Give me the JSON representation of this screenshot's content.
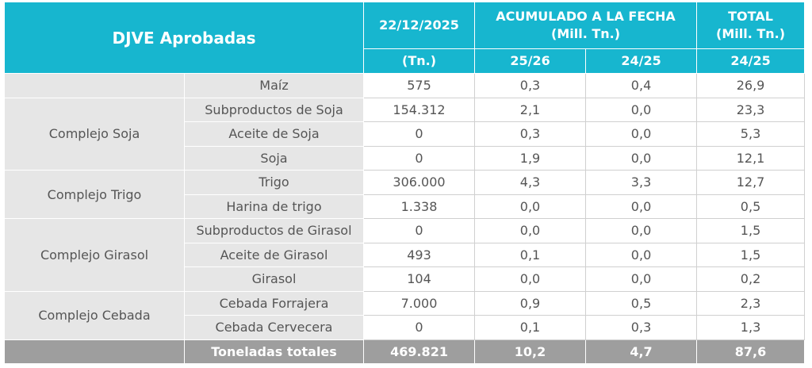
{
  "header": {
    "title": "DJVE Aprobadas",
    "date": "22/12/2025",
    "date_unit": "(Tn.)",
    "acumulado": [
      "ACUMULADO A LA FECHA",
      "(Mill. Tn.)"
    ],
    "total": [
      "TOTAL",
      "(Mill. Tn.)"
    ],
    "columns": [
      "25/26",
      "24/25",
      "24/25"
    ]
  },
  "sections": [
    {
      "products": [
        {
          "name": "Maíz",
          "values": [
            "575",
            "0,3",
            "0,4",
            "26,9"
          ]
        }
      ]
    },
    {
      "name": "Complejo Soja",
      "products": [
        {
          "name": "Subproductos de Soja",
          "values": [
            "154.312",
            "2,1",
            "0,0",
            "23,3"
          ]
        },
        {
          "name": "Aceite de Soja",
          "values": [
            "0",
            "0,3",
            "0,0",
            "5,3"
          ]
        },
        {
          "name": "Soja",
          "values": [
            "0",
            "1,9",
            "0,0",
            "12,1"
          ]
        }
      ]
    },
    {
      "name": "Complejo Trigo",
      "products": [
        {
          "name": "Trigo",
          "values": [
            "306.000",
            "4,3",
            "3,3",
            "12,7"
          ]
        },
        {
          "name": "Harina de trigo",
          "values": [
            "1.338",
            "0,0",
            "0,0",
            "0,5"
          ]
        }
      ]
    },
    {
      "name": "Complejo Girasol",
      "products": [
        {
          "name": "Subproductos de Girasol",
          "values": [
            "0",
            "0,0",
            "0,0",
            "1,5"
          ]
        },
        {
          "name": "Aceite de Girasol",
          "values": [
            "493",
            "0,1",
            "0,0",
            "1,5"
          ]
        },
        {
          "name": "Girasol",
          "values": [
            "104",
            "0,0",
            "0,0",
            "0,2"
          ]
        }
      ]
    },
    {
      "name": "Complejo Cebada",
      "products": [
        {
          "name": "Cebada Forrajera",
          "values": [
            "7.000",
            "0,9",
            "0,5",
            "2,3"
          ]
        },
        {
          "name": "Cebada Cervecera",
          "values": [
            "0",
            "0,1",
            "0,3",
            "1,3"
          ]
        }
      ]
    }
  ],
  "total": {
    "label": "Toneladas totales",
    "values": [
      "469.821",
      "10,2",
      "4,7",
      "87,6"
    ]
  }
}
